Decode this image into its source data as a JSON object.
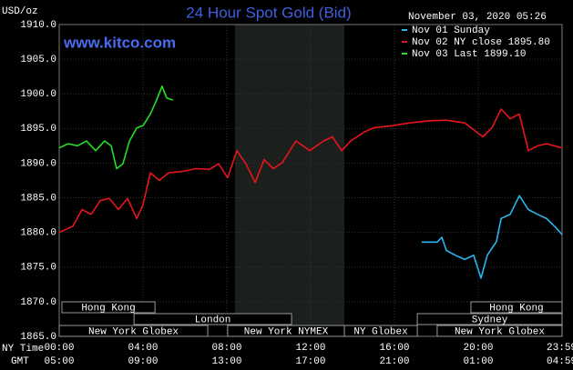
{
  "chart_data": {
    "type": "line",
    "title": "24 Hour Spot Gold (Bid)",
    "timestamp": "November 03, 2020 05:26",
    "website": "www.kitco.com",
    "y_label": "USD/oz",
    "x_row_labels": [
      "NY Time",
      "GMT"
    ],
    "xlim": [
      0,
      24
    ],
    "xticks": [
      {
        "value": 0,
        "label": "00:00"
      },
      {
        "value": 4,
        "label": "04:00"
      },
      {
        "value": 8,
        "label": "08:00"
      },
      {
        "value": 12,
        "label": "12:00"
      },
      {
        "value": 16,
        "label": "16:00"
      },
      {
        "value": 20,
        "label": "20:00"
      },
      {
        "value": 23.98,
        "label": "23:59"
      }
    ],
    "gmt_labels": [
      "05:00",
      "09:00",
      "13:00",
      "17:00",
      "21:00",
      "01:00",
      "04:59"
    ],
    "ylim": [
      1865,
      1910
    ],
    "yticks": [
      {
        "value": 1910,
        "label": "1910.0"
      },
      {
        "value": 1905,
        "label": "1905.0"
      },
      {
        "value": 1900,
        "label": "1900.0"
      },
      {
        "value": 1895,
        "label": "1895.0"
      },
      {
        "value": 1890,
        "label": "1890.0"
      },
      {
        "value": 1885,
        "label": "1885.0"
      },
      {
        "value": 1880,
        "label": "1880.0"
      },
      {
        "value": 1875,
        "label": "1875.0"
      },
      {
        "value": 1870,
        "label": "1870.0"
      },
      {
        "value": 1865,
        "label": "1865.0"
      }
    ],
    "grid": true,
    "highlight": [
      8.39,
      13.61
    ],
    "sessions": [
      {
        "label": "Hong Kong",
        "start": 0.13,
        "end": 4.57,
        "row": 0
      },
      {
        "label": "Hong Kong",
        "start": 19.65,
        "end": 24,
        "row": 0
      },
      {
        "label": "London",
        "start": 3.57,
        "end": 11.09,
        "row": 1
      },
      {
        "label": "Sydney",
        "start": 17.09,
        "end": 24,
        "row": 1
      },
      {
        "label": "New York Globex",
        "start": 0,
        "end": 7.09,
        "row": 2
      },
      {
        "label": "New York NYMEX",
        "start": 8.04,
        "end": 13.61,
        "row": 2
      },
      {
        "label": "NY Globex",
        "start": 13.61,
        "end": 17.09,
        "row": 2
      },
      {
        "label": "New York Globex",
        "start": 18.04,
        "end": 24,
        "row": 2
      }
    ],
    "series": [
      {
        "name": "Nov 01 Sunday",
        "color": "#29b6f0",
        "x": [
          17.3,
          18.04,
          18.26,
          18.48,
          18.91,
          19.35,
          19.78,
          20.13,
          20.43,
          20.87,
          21.09,
          21.52,
          21.96,
          22.39,
          22.83,
          23.26,
          23.7,
          24
        ],
        "values": [
          1878.6,
          1878.6,
          1879.3,
          1877.4,
          1876.7,
          1876.1,
          1876.7,
          1873.4,
          1876.7,
          1878.7,
          1882.0,
          1882.6,
          1885.3,
          1883.3,
          1882.6,
          1882.0,
          1880.7,
          1879.7
        ]
      },
      {
        "name": "Nov 02 NY close 1895.80",
        "color": "#e8141c",
        "x": [
          0,
          0.65,
          1.09,
          1.52,
          1.96,
          2.39,
          2.83,
          3.26,
          3.7,
          4.0,
          4.35,
          4.78,
          5.22,
          5.87,
          6.52,
          7.17,
          7.61,
          8.04,
          8.48,
          8.91,
          9.35,
          9.78,
          10.22,
          10.65,
          11.3,
          11.96,
          12.61,
          13.04,
          13.48,
          13.91,
          14.57,
          15.0,
          15.87,
          16.74,
          17.61,
          18.48,
          19.35,
          20.22,
          20.65,
          21.09,
          21.52,
          21.96,
          22.39,
          22.83,
          23.26,
          24
        ],
        "values": [
          1880.0,
          1880.9,
          1883.3,
          1882.6,
          1884.6,
          1884.9,
          1883.3,
          1884.9,
          1882.0,
          1884.0,
          1888.6,
          1887.5,
          1888.6,
          1888.8,
          1889.2,
          1889.1,
          1889.9,
          1887.9,
          1891.8,
          1889.9,
          1887.2,
          1890.5,
          1889.2,
          1890.1,
          1893.2,
          1891.8,
          1893.2,
          1893.8,
          1891.8,
          1893.2,
          1894.5,
          1895.1,
          1895.4,
          1895.8,
          1896.1,
          1896.2,
          1895.8,
          1893.8,
          1895.1,
          1897.8,
          1896.4,
          1897.1,
          1891.8,
          1892.5,
          1892.8,
          1892.2
        ]
      },
      {
        "name": "Nov 03 Last 1899.10",
        "color": "#22e022",
        "x": [
          0,
          0.43,
          0.87,
          1.3,
          1.74,
          2.17,
          2.48,
          2.74,
          3.04,
          3.35,
          3.7,
          4.0,
          4.35,
          4.65,
          4.91,
          5.13,
          5.43
        ],
        "values": [
          1892.2,
          1892.8,
          1892.5,
          1893.2,
          1891.8,
          1893.2,
          1892.5,
          1889.2,
          1889.9,
          1893.2,
          1895.1,
          1895.4,
          1897.1,
          1899.1,
          1901.1,
          1899.4,
          1899.1
        ]
      }
    ]
  }
}
